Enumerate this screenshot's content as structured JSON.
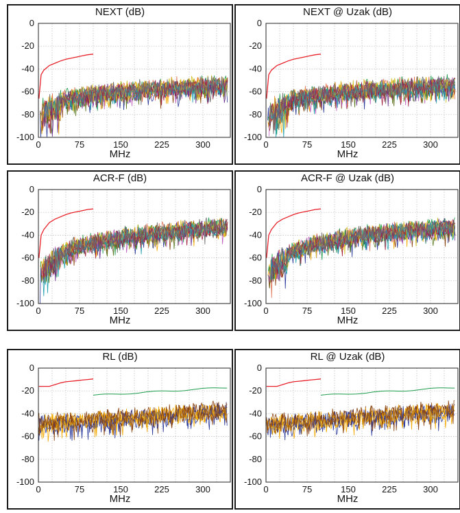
{
  "chart_data": [
    {
      "type": "line",
      "title": "NEXT (dB)",
      "xlabel": "MHz",
      "ylabel": "",
      "xlim": [
        0,
        350
      ],
      "ylim": [
        -100,
        0
      ],
      "xticks": [
        0,
        75,
        150,
        225,
        300
      ],
      "yticks": [
        0,
        -20,
        -40,
        -60,
        -80,
        -100
      ],
      "grid": true,
      "profile": "next",
      "series": [
        {
          "name": "",
          "limit": true,
          "x": [
            1,
            5,
            10,
            20,
            30,
            40,
            50,
            60,
            70,
            80,
            90,
            100
          ],
          "y": [
            -66,
            -45,
            -41,
            -37,
            -35,
            -33,
            -31.5,
            -30.5,
            -29.5,
            -28.5,
            -27.5,
            -27
          ]
        }
      ]
    },
    {
      "type": "line",
      "title": "NEXT @ Uzak (dB)",
      "xlabel": "MHz",
      "ylabel": "",
      "xlim": [
        0,
        350
      ],
      "ylim": [
        -100,
        0
      ],
      "xticks": [
        0,
        75,
        150,
        225,
        300
      ],
      "yticks": [
        0,
        -20,
        -40,
        -60,
        -80,
        -100
      ],
      "grid": true,
      "profile": "next",
      "series": [
        {
          "name": "",
          "limit": true,
          "x": [
            1,
            5,
            10,
            20,
            30,
            40,
            50,
            60,
            70,
            80,
            90,
            100
          ],
          "y": [
            -66,
            -45,
            -41,
            -37,
            -35,
            -33,
            -31.5,
            -30.5,
            -29.5,
            -28.5,
            -27.5,
            -27
          ]
        }
      ]
    },
    {
      "type": "line",
      "title": "ACR-F (dB)",
      "xlabel": "MHz",
      "ylabel": "",
      "xlim": [
        0,
        350
      ],
      "ylim": [
        -100,
        0
      ],
      "xticks": [
        0,
        75,
        150,
        225,
        300
      ],
      "yticks": [
        0,
        -20,
        -40,
        -60,
        -80,
        -100
      ],
      "grid": true,
      "profile": "acrf",
      "series": [
        {
          "name": "",
          "limit": true,
          "x": [
            1,
            5,
            10,
            20,
            30,
            40,
            50,
            60,
            70,
            80,
            90,
            100
          ],
          "y": [
            -60,
            -40,
            -35,
            -29,
            -26,
            -24,
            -22,
            -20.5,
            -19.5,
            -18.5,
            -17.5,
            -17
          ]
        }
      ]
    },
    {
      "type": "line",
      "title": "ACR-F @ Uzak (dB)",
      "xlabel": "MHz",
      "ylabel": "",
      "xlim": [
        0,
        350
      ],
      "ylim": [
        -100,
        0
      ],
      "xticks": [
        0,
        75,
        150,
        225,
        300
      ],
      "yticks": [
        0,
        -20,
        -40,
        -60,
        -80,
        -100
      ],
      "grid": true,
      "profile": "acrf",
      "series": [
        {
          "name": "",
          "limit": true,
          "x": [
            1,
            5,
            10,
            20,
            30,
            40,
            50,
            60,
            70,
            80,
            90,
            100
          ],
          "y": [
            -60,
            -40,
            -35,
            -29,
            -26,
            -24,
            -22,
            -20.5,
            -19.5,
            -18.5,
            -17.5,
            -17
          ]
        }
      ]
    },
    {
      "type": "line",
      "title": "RL (dB)",
      "xlabel": "MHz",
      "ylabel": "",
      "xlim": [
        0,
        350
      ],
      "ylim": [
        -100,
        0
      ],
      "xticks": [
        0,
        75,
        150,
        225,
        300
      ],
      "yticks": [
        0,
        -20,
        -40,
        -60,
        -80,
        -100
      ],
      "grid": true,
      "profile": "rl",
      "series": [
        {
          "name": "",
          "limit": true,
          "x": [
            1,
            10,
            20,
            30,
            40,
            50,
            60,
            70,
            80,
            90,
            100
          ],
          "y": [
            -16,
            -16,
            -16,
            -14.5,
            -13,
            -12,
            -11.5,
            -11,
            -10.5,
            -10,
            -9.5
          ]
        }
      ]
    },
    {
      "type": "line",
      "title": "RL @ Uzak (dB)",
      "xlabel": "MHz",
      "ylabel": "",
      "xlim": [
        0,
        350
      ],
      "ylim": [
        -100,
        0
      ],
      "xticks": [
        0,
        75,
        150,
        225,
        300
      ],
      "yticks": [
        0,
        -20,
        -40,
        -60,
        -80,
        -100
      ],
      "grid": true,
      "profile": "rl",
      "series": [
        {
          "name": "",
          "limit": true,
          "x": [
            1,
            10,
            20,
            30,
            40,
            50,
            60,
            70,
            80,
            90,
            100
          ],
          "y": [
            -16,
            -16,
            -16,
            -14.5,
            -13,
            -12,
            -11.5,
            -11,
            -10.5,
            -10,
            -9.5
          ]
        }
      ]
    }
  ],
  "colors": {
    "limit": "#e8202a",
    "grid": "#b8b8b8",
    "traces": [
      "#2b3a9a",
      "#f2a900",
      "#1a9a4a",
      "#8b4513",
      "#c060c0",
      "#e07050",
      "#5a7a20",
      "#6a3090",
      "#d4c020",
      "#20a0b0",
      "#a02040",
      "#707070"
    ]
  }
}
